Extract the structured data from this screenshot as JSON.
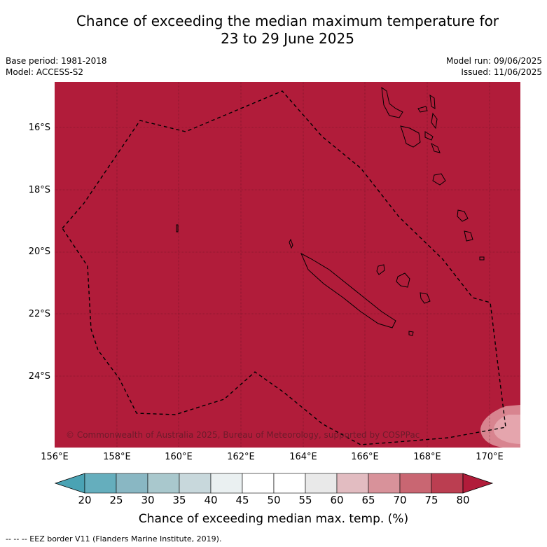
{
  "title": {
    "line1": "Chance of exceeding the median maximum temperature for",
    "line2": "23 to 29 June 2025"
  },
  "meta": {
    "base_period": "Base period: 1981-2018",
    "model": "Model: ACCESS-S2",
    "model_run": "Model run: 09/06/2025",
    "issued": "Issued: 11/06/2025"
  },
  "map": {
    "fill_color": "#b11c3a",
    "light_zone_color": "#d8848f",
    "lat_labels": [
      "16°S",
      "18°S",
      "20°S",
      "22°S",
      "24°S"
    ],
    "lon_labels": [
      "156°E",
      "158°E",
      "160°E",
      "162°E",
      "164°E",
      "166°E",
      "168°E",
      "170°E"
    ],
    "copyright": "© Commonwealth of Australia 2025, Bureau of Meteorology, supported by COSPPac"
  },
  "colorbar": {
    "ticks": [
      "20",
      "25",
      "30",
      "35",
      "40",
      "45",
      "50",
      "55",
      "60",
      "65",
      "70",
      "75",
      "80"
    ],
    "colors": [
      "#65aebd",
      "#89b7c3",
      "#a9c8cd",
      "#c8d8dc",
      "#eaf0f1",
      "#ffffff",
      "#ffffff",
      "#e9e9e9",
      "#e2bcc1",
      "#d8929a",
      "#c96672",
      "#bb3e51"
    ],
    "under_color": "#4aa3b4",
    "over_color": "#b11c3a",
    "label": "Chance of exceeding median max. temp. (%)"
  },
  "legend": {
    "eez": "--  --  -- EEZ border V11 (Flanders Marine Institute, 2019)."
  }
}
